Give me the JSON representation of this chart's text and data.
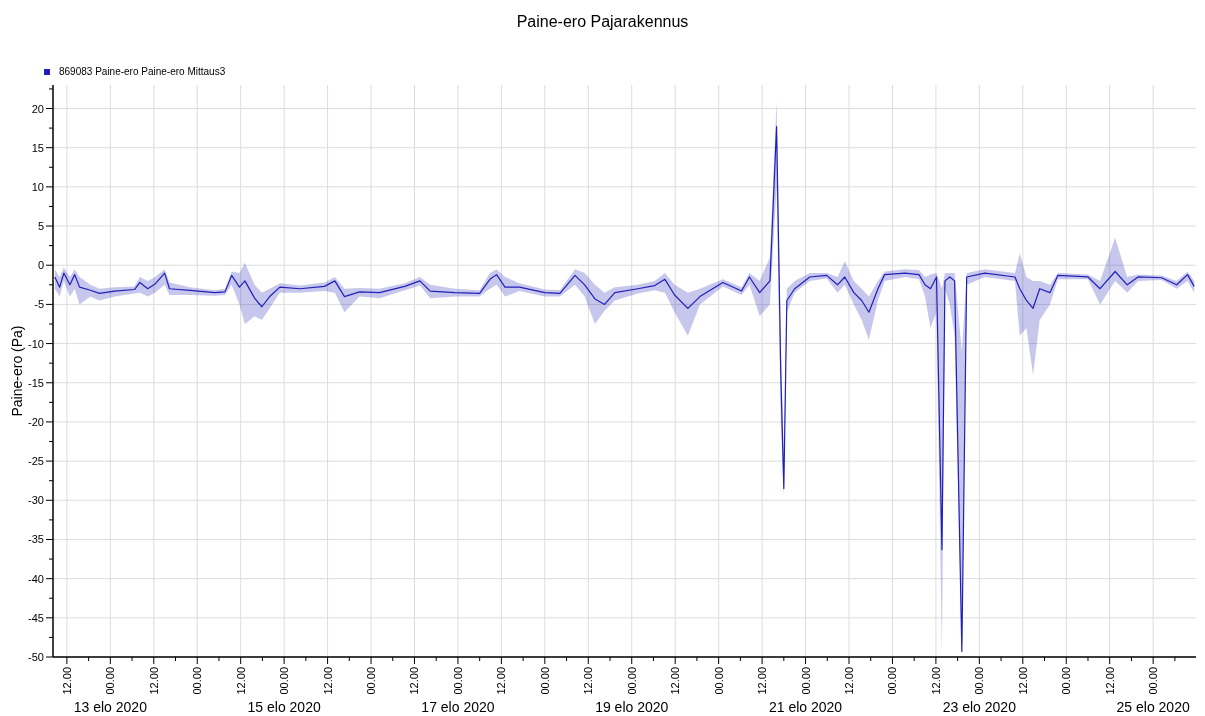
{
  "chart_data": {
    "type": "line",
    "title": "Paine-ero Pajarakennus",
    "ylabel": "Paine-ero (Pa)",
    "legend": "top left",
    "grid": true,
    "xlim": [
      "2020-08-12T08:10",
      "2020-08-25T11:50"
    ],
    "ylim": [
      -50,
      23
    ],
    "yticks": [
      -50,
      {
        "value": -47.5,
        "label": null
      },
      -45,
      {
        "value": -42.5,
        "label": null
      },
      -40,
      {
        "value": -37.5,
        "label": null
      },
      -35,
      {
        "value": -32.5,
        "label": null
      },
      -30,
      {
        "value": -27.5,
        "label": null
      },
      -25,
      {
        "value": -22.5,
        "label": null
      },
      -20,
      {
        "value": -17.5,
        "label": null
      },
      -15,
      {
        "value": -12.5,
        "label": null
      },
      -10,
      {
        "value": -7.5,
        "label": null
      },
      -5,
      {
        "value": -2.5,
        "label": null
      },
      0,
      {
        "value": 2.5,
        "label": null
      },
      5,
      {
        "value": 7.5,
        "label": null
      },
      10,
      {
        "value": 12.5,
        "label": null
      },
      15,
      {
        "value": 17.5,
        "label": null
      },
      20,
      {
        "value": 22.5,
        "label": null
      }
    ],
    "xticks": [
      {
        "value": "2020-08-12T12:00",
        "label": "12.00"
      },
      {
        "value": "2020-08-12T18:00",
        "label": null
      },
      {
        "value": "2020-08-13T00:00",
        "label": "00.00"
      },
      {
        "value": "2020-08-13T06:00",
        "label": null
      },
      {
        "value": "2020-08-13T12:00",
        "label": "12.00"
      },
      {
        "value": "2020-08-13T18:00",
        "label": null
      },
      {
        "value": "2020-08-14T00:00",
        "label": "00.00"
      },
      {
        "value": "2020-08-14T06:00",
        "label": null
      },
      {
        "value": "2020-08-14T12:00",
        "label": "12.00"
      },
      {
        "value": "2020-08-14T18:00",
        "label": null
      },
      {
        "value": "2020-08-15T00:00",
        "label": "00.00"
      },
      {
        "value": "2020-08-15T06:00",
        "label": null
      },
      {
        "value": "2020-08-15T12:00",
        "label": "12.00"
      },
      {
        "value": "2020-08-15T18:00",
        "label": null
      },
      {
        "value": "2020-08-16T00:00",
        "label": "00.00"
      },
      {
        "value": "2020-08-16T06:00",
        "label": null
      },
      {
        "value": "2020-08-16T12:00",
        "label": "12.00"
      },
      {
        "value": "2020-08-16T18:00",
        "label": null
      },
      {
        "value": "2020-08-17T00:00",
        "label": "00.00"
      },
      {
        "value": "2020-08-17T06:00",
        "label": null
      },
      {
        "value": "2020-08-17T12:00",
        "label": "12.00"
      },
      {
        "value": "2020-08-17T18:00",
        "label": null
      },
      {
        "value": "2020-08-18T00:00",
        "label": "00.00"
      },
      {
        "value": "2020-08-18T06:00",
        "label": null
      },
      {
        "value": "2020-08-18T12:00",
        "label": "12.00"
      },
      {
        "value": "2020-08-18T18:00",
        "label": null
      },
      {
        "value": "2020-08-19T00:00",
        "label": "00.00"
      },
      {
        "value": "2020-08-19T06:00",
        "label": null
      },
      {
        "value": "2020-08-19T12:00",
        "label": "12.00"
      },
      {
        "value": "2020-08-19T18:00",
        "label": null
      },
      {
        "value": "2020-08-20T00:00",
        "label": "00.00"
      },
      {
        "value": "2020-08-20T06:00",
        "label": null
      },
      {
        "value": "2020-08-20T12:00",
        "label": "12.00"
      },
      {
        "value": "2020-08-20T18:00",
        "label": null
      },
      {
        "value": "2020-08-21T00:00",
        "label": "00.00"
      },
      {
        "value": "2020-08-21T06:00",
        "label": null
      },
      {
        "value": "2020-08-21T12:00",
        "label": "12.00"
      },
      {
        "value": "2020-08-21T18:00",
        "label": null
      },
      {
        "value": "2020-08-22T00:00",
        "label": "00.00"
      },
      {
        "value": "2020-08-22T06:00",
        "label": null
      },
      {
        "value": "2020-08-22T12:00",
        "label": "12.00"
      },
      {
        "value": "2020-08-22T18:00",
        "label": null
      },
      {
        "value": "2020-08-23T00:00",
        "label": "00.00"
      },
      {
        "value": "2020-08-23T06:00",
        "label": null
      },
      {
        "value": "2020-08-23T12:00",
        "label": "12.00"
      },
      {
        "value": "2020-08-23T18:00",
        "label": null
      },
      {
        "value": "2020-08-24T00:00",
        "label": "00.00"
      },
      {
        "value": "2020-08-24T06:00",
        "label": null
      },
      {
        "value": "2020-08-24T12:00",
        "label": "12.00"
      },
      {
        "value": "2020-08-24T18:00",
        "label": null
      },
      {
        "value": "2020-08-25T00:00",
        "label": "00.00"
      },
      {
        "value": "2020-08-25T06:00",
        "label": null
      }
    ],
    "x2lim": [
      "2020-08-12T08:10",
      "2020-08-25T11:50"
    ],
    "x2ticks": [
      {
        "value": "2020-08-13T00:00",
        "label": "13 elo 2020"
      },
      {
        "value": "2020-08-15T00:00",
        "label": "15 elo 2020"
      },
      {
        "value": "2020-08-17T00:00",
        "label": "17 elo 2020"
      },
      {
        "value": "2020-08-19T00:00",
        "label": "19 elo 2020"
      },
      {
        "value": "2020-08-21T00:00",
        "label": "21 elo 2020"
      },
      {
        "value": "2020-08-23T00:00",
        "label": "23 elo 2020"
      },
      {
        "value": "2020-08-25T00:00",
        "label": "25 elo 2020"
      }
    ],
    "series": [
      {
        "name": "869083  Paine-ero Paine-ero Mittaus3",
        "color": "#2020b8",
        "x": [
          "2020-08-12T08:40",
          "2020-08-12T10:00",
          "2020-08-12T11:10",
          "2020-08-12T12:50",
          "2020-08-12T14:10",
          "2020-08-12T15:30",
          "2020-08-12T18:30",
          "2020-08-12T21:00",
          "2020-08-13T01:10",
          "2020-08-13T06:40",
          "2020-08-13T08:10",
          "2020-08-13T10:20",
          "2020-08-13T12:20",
          "2020-08-13T15:00",
          "2020-08-13T16:20",
          "2020-08-13T22:00",
          "2020-08-14T04:50",
          "2020-08-14T07:40",
          "2020-08-14T09:30",
          "2020-08-14T11:40",
          "2020-08-14T13:10",
          "2020-08-14T15:50",
          "2020-08-14T17:50",
          "2020-08-14T20:00",
          "2020-08-14T22:50",
          "2020-08-15T04:20",
          "2020-08-15T11:10",
          "2020-08-15T14:00",
          "2020-08-15T16:40",
          "2020-08-15T20:50",
          "2020-08-16T02:20",
          "2020-08-16T09:20",
          "2020-08-16T13:30",
          "2020-08-16T16:20",
          "2020-08-16T23:10",
          "2020-08-17T06:00",
          "2020-08-17T08:50",
          "2020-08-17T10:40",
          "2020-08-17T13:00",
          "2020-08-17T17:00",
          "2020-08-18T00:00",
          "2020-08-18T04:10",
          "2020-08-18T08:20",
          "2020-08-18T11:00",
          "2020-08-18T13:50",
          "2020-08-18T16:30",
          "2020-08-18T19:20",
          "2020-08-19T01:40",
          "2020-08-19T06:20",
          "2020-08-19T09:10",
          "2020-08-19T11:50",
          "2020-08-19T15:30",
          "2020-08-19T18:50",
          "2020-08-20T01:10",
          "2020-08-20T06:20",
          "2020-08-20T08:30",
          "2020-08-20T11:20",
          "2020-08-20T14:10",
          "2020-08-20T16:00",
          "2020-08-20T17:10",
          "2020-08-20T18:00",
          "2020-08-20T18:50",
          "2020-08-20T21:00",
          "2020-08-21T01:10",
          "2020-08-21T05:50",
          "2020-08-21T08:50",
          "2020-08-21T10:50",
          "2020-08-21T13:20",
          "2020-08-21T15:30",
          "2020-08-21T17:30",
          "2020-08-21T20:00",
          "2020-08-21T21:50",
          "2020-08-22T03:30",
          "2020-08-22T07:20",
          "2020-08-22T09:00",
          "2020-08-22T10:30",
          "2020-08-22T12:10",
          "2020-08-22T13:40",
          "2020-08-22T14:30",
          "2020-08-22T15:50",
          "2020-08-22T17:10",
          "2020-08-22T19:10",
          "2020-08-22T20:30",
          "2020-08-23T01:30",
          "2020-08-23T09:50",
          "2020-08-23T11:10",
          "2020-08-23T13:00",
          "2020-08-23T14:50",
          "2020-08-23T16:40",
          "2020-08-23T19:30",
          "2020-08-23T21:40",
          "2020-08-24T06:00",
          "2020-08-24T09:20",
          "2020-08-24T13:30",
          "2020-08-24T16:50",
          "2020-08-24T19:50",
          "2020-08-25T02:20",
          "2020-08-25T06:30",
          "2020-08-25T09:30",
          "2020-08-25T11:20"
        ],
        "values": [
          -1.5,
          -2.8,
          -1,
          -2.5,
          -1.2,
          -2.8,
          -3.2,
          -3.6,
          -3.3,
          -3.1,
          -2.2,
          -3,
          -2.4,
          -1,
          -3,
          -3.2,
          -3.5,
          -3.4,
          -1.3,
          -2.8,
          -2,
          -4.2,
          -5.3,
          -4,
          -2.8,
          -3,
          -2.7,
          -2,
          -4,
          -3.4,
          -3.5,
          -2.7,
          -2,
          -3.3,
          -3.5,
          -3.6,
          -1.8,
          -1.2,
          -2.8,
          -2.8,
          -3.5,
          -3.6,
          -1.3,
          -2.5,
          -4.3,
          -5,
          -3.5,
          -3,
          -2.6,
          -1.8,
          -3.8,
          -5.5,
          -4,
          -2.2,
          -3.3,
          -1.5,
          -3.5,
          -2,
          17.7,
          -14,
          -28.5,
          -4.5,
          -3,
          -1.5,
          -1.3,
          -2.5,
          -1.5,
          -3.5,
          -4.5,
          -6,
          -3,
          -1.2,
          -1,
          -1.2,
          -2.5,
          -3,
          -1.5,
          -36.3,
          -2,
          -1.5,
          -2,
          -49.3,
          -1.5,
          -1,
          -1.5,
          -3,
          -4.5,
          -5.5,
          -3,
          -3.5,
          -1.3,
          -1.5,
          -3,
          -0.8,
          -2.5,
          -1.5,
          -1.6,
          -2.5,
          -1.2,
          -2.7
        ],
        "lower": [
          -3,
          -4,
          -2,
          -4,
          -3,
          -5,
          -4,
          -4.5,
          -4,
          -3.6,
          -3.5,
          -4,
          -3.5,
          -2.5,
          -3.8,
          -3.8,
          -3.9,
          -3.8,
          -2.5,
          -5,
          -7.5,
          -6.5,
          -7,
          -5.5,
          -3.5,
          -3.5,
          -3.3,
          -3.5,
          -6,
          -4,
          -4.2,
          -3.2,
          -2.6,
          -4.2,
          -4,
          -4,
          -3,
          -2.5,
          -4,
          -3.3,
          -4,
          -4,
          -2.5,
          -4,
          -7.5,
          -5.8,
          -4.5,
          -3.6,
          -3.2,
          -3.5,
          -6,
          -9,
          -5,
          -2.7,
          -3.8,
          -2.5,
          -6.5,
          -5,
          10,
          -20,
          -29.5,
          -6,
          -3.5,
          -2,
          -1.7,
          -3.5,
          -2.5,
          -5,
          -7,
          -9.5,
          -4.5,
          -2,
          -1.5,
          -1.8,
          -4,
          -8,
          -6,
          -49.5,
          -3,
          -5,
          -9,
          -49.5,
          -2.5,
          -1.5,
          -2,
          -9,
          -8,
          -14,
          -7,
          -5,
          -1.8,
          -1.8,
          -5,
          -2,
          -3.5,
          -2,
          -1.9,
          -3,
          -2,
          -3.5
        ],
        "upper": [
          -0.5,
          -1.5,
          -0.3,
          -1.5,
          -0.5,
          -1.5,
          -2.5,
          -3,
          -2.8,
          -2.7,
          -1.5,
          -2,
          -1.5,
          -0.5,
          -2.2,
          -2.8,
          -3.2,
          -3,
          -0.8,
          -1,
          0.3,
          -2.5,
          -3.5,
          -3,
          -2.3,
          -2.6,
          -2.2,
          -1.5,
          -3,
          -2.9,
          -3,
          -2.3,
          -1.5,
          -2.5,
          -3,
          -3.2,
          -1,
          -0.5,
          -1.5,
          -2.3,
          -3.1,
          -3.2,
          -0.5,
          -1,
          -2.5,
          -3.5,
          -2.8,
          -2.5,
          -2,
          -1,
          -2.5,
          -3.5,
          -3,
          -1.8,
          -2.8,
          -1,
          -2,
          1,
          20.9,
          -10,
          -24,
          -3,
          -2,
          -1,
          -1,
          -1.5,
          0.5,
          -2,
          -3,
          -4,
          -2,
          -0.8,
          -0.5,
          -0.6,
          -1.5,
          -1.2,
          -1,
          -3,
          -1,
          -1,
          -1,
          -11,
          -1,
          -0.5,
          -1,
          1.5,
          -1.5,
          -2,
          -2,
          -2.5,
          -1,
          -1.2,
          -2,
          3.5,
          -1.5,
          -1.2,
          -1.3,
          -2,
          -0.8,
          -2
        ]
      }
    ]
  }
}
